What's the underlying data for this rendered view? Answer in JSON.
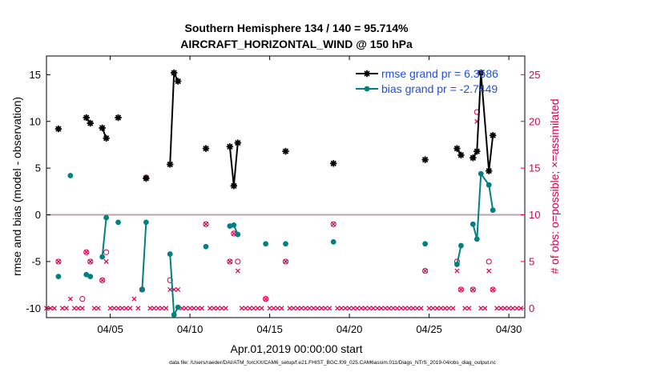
{
  "chart_data": {
    "type": "line",
    "title": "Southern Hemisphere 134 / 140 = 95.714%",
    "subtitle": "AIRCRAFT_HORIZONTAL_WIND @ 150 hPa",
    "xlabel": "Apr.01,2019 00:00:00 start",
    "ylabel": "rmse and bias (model - observation)",
    "y2label": "# of obs: o=possible; ×=assimilated",
    "xlim": [
      1.0,
      31.0
    ],
    "ylim": [
      -11,
      17
    ],
    "y2lim": [
      -1,
      27
    ],
    "xticks": [
      5,
      10,
      15,
      20,
      25,
      30
    ],
    "xticklabels": [
      "04/05",
      "04/10",
      "04/15",
      "04/20",
      "04/25",
      "04/30"
    ],
    "yticks": [
      -10,
      -5,
      0,
      5,
      10,
      15
    ],
    "yticklabels": [
      "-10",
      "-5",
      "0",
      "5",
      "10",
      "15"
    ],
    "y2ticks": [
      0,
      5,
      10,
      15,
      20,
      25
    ],
    "y2ticklabels": [
      "0",
      "5",
      "10",
      "15",
      "20",
      "25"
    ],
    "zero_line": 0,
    "grid": false,
    "legend_position": "top-right",
    "colors": {
      "rmse": "#000000",
      "bias": "#008080",
      "counts": "#d6004f",
      "zero": "#b9a3a8",
      "legend_text": "#1f4fd8"
    },
    "series": [
      {
        "name": "rmse grand pr = 6.3586",
        "marker": "asterisk",
        "segments": [
          [
            [
              1.75,
              9.2
            ]
          ],
          [
            [
              3.5,
              10.4
            ],
            [
              3.75,
              9.8
            ]
          ],
          [
            [
              4.5,
              9.3
            ],
            [
              4.75,
              8.2
            ]
          ],
          [
            [
              5.5,
              10.4
            ]
          ],
          [
            [
              7.25,
              3.9
            ]
          ],
          [
            [
              8.75,
              5.4
            ],
            [
              9.0,
              15.2
            ],
            [
              9.25,
              14.3
            ]
          ],
          [
            [
              11.0,
              7.1
            ]
          ],
          [
            [
              12.5,
              7.3
            ],
            [
              12.75,
              3.1
            ],
            [
              13.0,
              7.7
            ]
          ],
          [
            [
              16.0,
              6.8
            ]
          ],
          [
            [
              19.0,
              5.5
            ]
          ],
          [
            [
              24.75,
              5.9
            ]
          ],
          [
            [
              26.75,
              7.1
            ],
            [
              27.0,
              6.4
            ]
          ],
          [
            [
              27.75,
              6.1
            ],
            [
              28.0,
              6.8
            ],
            [
              28.25,
              15.2
            ],
            [
              28.75,
              4.7
            ],
            [
              29.0,
              8.5
            ]
          ]
        ]
      },
      {
        "name": "bias grand pr = -2.7449",
        "marker": "dot",
        "segments": [
          [
            [
              1.75,
              -6.6
            ]
          ],
          [
            [
              2.5,
              4.2
            ]
          ],
          [
            [
              3.5,
              -6.4
            ],
            [
              3.75,
              -6.6
            ]
          ],
          [
            [
              4.5,
              -4.5
            ],
            [
              4.75,
              -0.3
            ]
          ],
          [
            [
              5.5,
              -0.8
            ]
          ],
          [
            [
              7.0,
              -8.0
            ],
            [
              7.25,
              -0.8
            ]
          ],
          [
            [
              8.75,
              -4.2
            ],
            [
              9.0,
              -10.7
            ],
            [
              9.25,
              -9.9
            ]
          ],
          [
            [
              11.0,
              -3.4
            ]
          ],
          [
            [
              12.5,
              -1.2
            ],
            [
              12.75,
              -1.1
            ],
            [
              13.0,
              -2.1
            ]
          ],
          [
            [
              14.75,
              -3.1
            ]
          ],
          [
            [
              16.0,
              -3.1
            ]
          ],
          [
            [
              19.0,
              -2.9
            ]
          ],
          [
            [
              24.75,
              -3.1
            ]
          ],
          [
            [
              26.75,
              -5.3
            ],
            [
              27.0,
              -3.3
            ]
          ],
          [
            [
              27.75,
              -1.0
            ],
            [
              28.0,
              -2.6
            ],
            [
              28.25,
              4.4
            ],
            [
              28.75,
              3.2
            ],
            [
              29.0,
              0.5
            ]
          ]
        ]
      }
    ],
    "obs_counts": {
      "possible": [
        [
          1.75,
          5
        ],
        [
          3.25,
          1
        ],
        [
          3.5,
          6
        ],
        [
          3.75,
          5
        ],
        [
          4.5,
          3
        ],
        [
          4.75,
          6
        ],
        [
          7.0,
          2
        ],
        [
          7.25,
          14
        ],
        [
          8.75,
          3
        ],
        [
          11.0,
          9
        ],
        [
          12.5,
          5
        ],
        [
          12.75,
          8
        ],
        [
          13.0,
          5
        ],
        [
          14.75,
          1
        ],
        [
          16.0,
          5
        ],
        [
          19.0,
          9
        ],
        [
          24.75,
          4
        ],
        [
          26.75,
          5
        ],
        [
          27.0,
          2
        ],
        [
          27.75,
          2
        ],
        [
          28.0,
          21
        ],
        [
          28.75,
          5
        ],
        [
          29.0,
          2
        ]
      ],
      "assimilated": [
        [
          1.0,
          0
        ],
        [
          1.25,
          0
        ],
        [
          1.5,
          0
        ],
        [
          1.75,
          5
        ],
        [
          2.0,
          0
        ],
        [
          2.25,
          0
        ],
        [
          2.5,
          1
        ],
        [
          2.75,
          0
        ],
        [
          3.0,
          0
        ],
        [
          3.25,
          0
        ],
        [
          3.5,
          6
        ],
        [
          3.75,
          5
        ],
        [
          4.0,
          0
        ],
        [
          4.25,
          0
        ],
        [
          4.5,
          3
        ],
        [
          4.75,
          5
        ],
        [
          5.0,
          0
        ],
        [
          5.25,
          0
        ],
        [
          5.5,
          0
        ],
        [
          5.75,
          0
        ],
        [
          6.0,
          0
        ],
        [
          6.25,
          0
        ],
        [
          6.5,
          1
        ],
        [
          6.75,
          0
        ],
        [
          7.0,
          2
        ],
        [
          7.25,
          14
        ],
        [
          7.5,
          0
        ],
        [
          7.75,
          0
        ],
        [
          8.0,
          0
        ],
        [
          8.25,
          0
        ],
        [
          8.5,
          0
        ],
        [
          8.75,
          2
        ],
        [
          9.0,
          2
        ],
        [
          9.25,
          2
        ],
        [
          9.5,
          0
        ],
        [
          9.75,
          0
        ],
        [
          10.0,
          0
        ],
        [
          10.25,
          0
        ],
        [
          10.5,
          0
        ],
        [
          10.75,
          0
        ],
        [
          11.0,
          9
        ],
        [
          11.25,
          0
        ],
        [
          11.5,
          0
        ],
        [
          11.75,
          0
        ],
        [
          12.0,
          0
        ],
        [
          12.25,
          0
        ],
        [
          12.5,
          5
        ],
        [
          12.75,
          8
        ],
        [
          13.0,
          4
        ],
        [
          13.25,
          0
        ],
        [
          13.5,
          0
        ],
        [
          13.75,
          0
        ],
        [
          14.0,
          0
        ],
        [
          14.25,
          0
        ],
        [
          14.5,
          0
        ],
        [
          14.75,
          1
        ],
        [
          15.0,
          0
        ],
        [
          15.25,
          0
        ],
        [
          15.5,
          0
        ],
        [
          15.75,
          0
        ],
        [
          16.0,
          5
        ],
        [
          16.25,
          0
        ],
        [
          16.5,
          0
        ],
        [
          16.75,
          0
        ],
        [
          17.0,
          0
        ],
        [
          17.25,
          0
        ],
        [
          17.5,
          0
        ],
        [
          17.75,
          0
        ],
        [
          18.0,
          0
        ],
        [
          18.25,
          0
        ],
        [
          18.5,
          0
        ],
        [
          18.75,
          0
        ],
        [
          19.0,
          9
        ],
        [
          19.25,
          0
        ],
        [
          19.5,
          0
        ],
        [
          19.75,
          0
        ],
        [
          20.0,
          0
        ],
        [
          20.25,
          0
        ],
        [
          20.5,
          0
        ],
        [
          20.75,
          0
        ],
        [
          21.0,
          0
        ],
        [
          21.25,
          0
        ],
        [
          21.5,
          0
        ],
        [
          21.75,
          0
        ],
        [
          22.0,
          0
        ],
        [
          22.25,
          0
        ],
        [
          22.5,
          0
        ],
        [
          22.75,
          0
        ],
        [
          23.0,
          0
        ],
        [
          23.25,
          0
        ],
        [
          23.5,
          0
        ],
        [
          23.75,
          0
        ],
        [
          24.0,
          0
        ],
        [
          24.25,
          0
        ],
        [
          24.5,
          0
        ],
        [
          24.75,
          4
        ],
        [
          25.0,
          0
        ],
        [
          25.25,
          0
        ],
        [
          25.5,
          0
        ],
        [
          25.75,
          0
        ],
        [
          26.0,
          0
        ],
        [
          26.25,
          0
        ],
        [
          26.5,
          0
        ],
        [
          26.75,
          4
        ],
        [
          27.0,
          2
        ],
        [
          27.25,
          0
        ],
        [
          27.5,
          0
        ],
        [
          27.75,
          2
        ],
        [
          28.0,
          20
        ],
        [
          28.25,
          0
        ],
        [
          28.5,
          0
        ],
        [
          28.75,
          4
        ],
        [
          29.0,
          2
        ],
        [
          29.25,
          0
        ],
        [
          29.5,
          0
        ],
        [
          29.75,
          0
        ],
        [
          30.0,
          0
        ],
        [
          30.25,
          0
        ],
        [
          30.5,
          0
        ],
        [
          30.75,
          0
        ]
      ]
    }
  },
  "footnote": "data file: /Users/raeder/DAI/ATM_forcXX/CAM6_setup/f.e21.FHIST_BGC.f09_025.CAM6assim.011/Diags_NTrS_2019-04/obs_diag_output.nc"
}
